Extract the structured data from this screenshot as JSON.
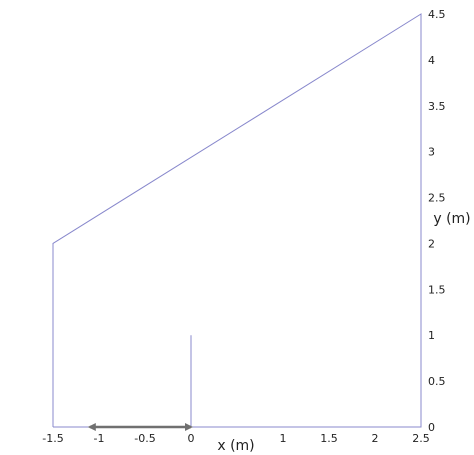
{
  "chart_data": {
    "type": "line",
    "title": "",
    "xlabel": "x (m)",
    "ylabel": "y (m)",
    "xlim": [
      -1.5,
      2.5
    ],
    "ylim": [
      0,
      4.5
    ],
    "x_ticks": [
      -1.5,
      -1,
      -0.5,
      0,
      1,
      1.5,
      2,
      2.5
    ],
    "x_tick_labels": [
      "-1.5",
      "-1",
      "-0.5",
      "0",
      "1",
      "1.5",
      "2",
      "2.5"
    ],
    "y_ticks": [
      0,
      0.5,
      1,
      1.5,
      2,
      2.5,
      3,
      3.5,
      4,
      4.5
    ],
    "y_tick_labels": [
      "0",
      "0.5",
      "1",
      "1.5",
      "2",
      "2.5",
      "3",
      "3.5",
      "4",
      "4.5"
    ],
    "grid": false,
    "series": [
      {
        "color": "#8888cc",
        "x": [
          -1.5,
          -1.5,
          2.5,
          2.5,
          -1.5
        ],
        "y": [
          0,
          2,
          4.5,
          0,
          0
        ]
      },
      {
        "color": "#8888cc",
        "x": [
          0,
          0
        ],
        "y": [
          0,
          1
        ]
      }
    ],
    "annotations": [
      {
        "type": "double-arrow",
        "color": "#707070",
        "x": [
          -1.1,
          0
        ],
        "y": [
          0,
          0
        ]
      }
    ]
  }
}
